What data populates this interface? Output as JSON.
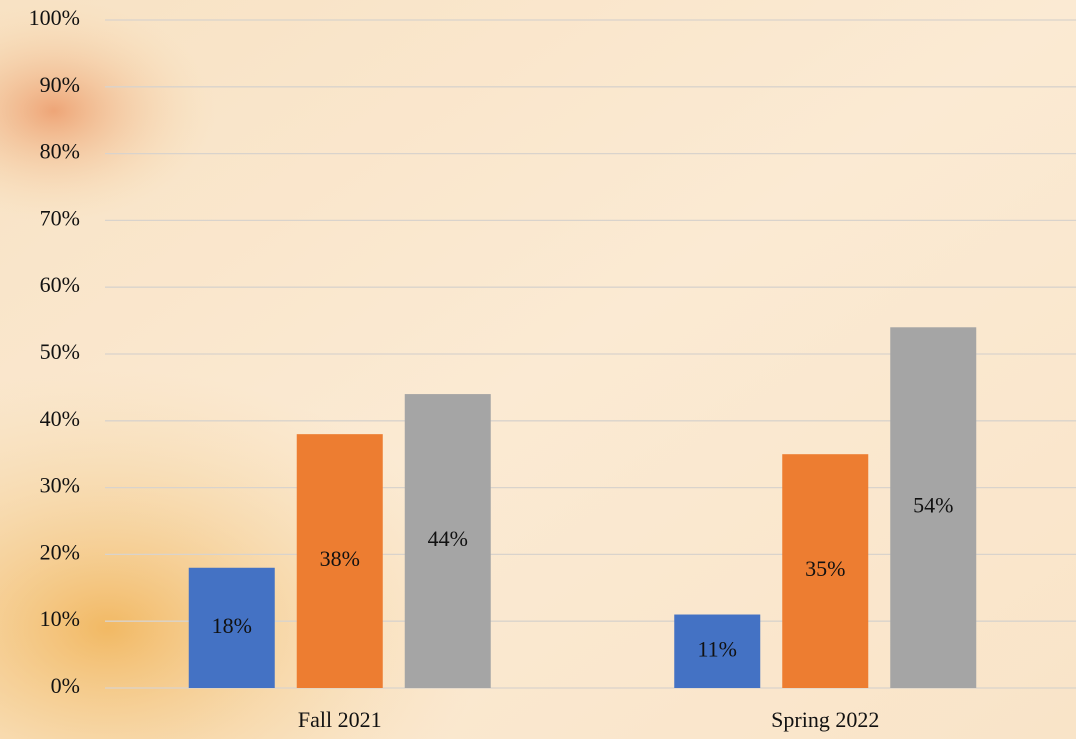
{
  "chart_data": {
    "type": "bar",
    "categories": [
      "Fall 2021",
      "Spring 2022"
    ],
    "series": [
      {
        "color": "#4472c4",
        "values": [
          18,
          11
        ],
        "value_labels": [
          "18%",
          "11%"
        ]
      },
      {
        "color": "#ed7d31",
        "values": [
          38,
          35
        ],
        "value_labels": [
          "38%",
          "35%"
        ]
      },
      {
        "color": "#a5a5a5",
        "values": [
          44,
          54
        ],
        "value_labels": [
          "44%",
          "54%"
        ]
      }
    ],
    "ylim": [
      0,
      100
    ],
    "yticks": [
      {
        "value": 0,
        "label": "0%"
      },
      {
        "value": 10,
        "label": "10%"
      },
      {
        "value": 20,
        "label": "20%"
      },
      {
        "value": 30,
        "label": "30%"
      },
      {
        "value": 40,
        "label": "40%"
      },
      {
        "value": 50,
        "label": "50%"
      },
      {
        "value": 60,
        "label": "60%"
      },
      {
        "value": 70,
        "label": "70%"
      },
      {
        "value": 80,
        "label": "80%"
      },
      {
        "value": 90,
        "label": "90%"
      },
      {
        "value": 100,
        "label": "100%"
      }
    ],
    "grid": true
  }
}
